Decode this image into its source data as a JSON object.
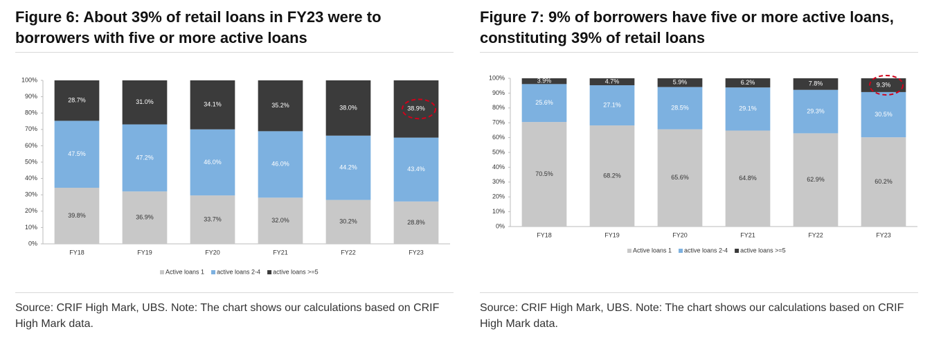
{
  "chart_data": [
    {
      "type": "bar",
      "stacked": "percent",
      "title": "Figure 6: About 39% of retail loans in FY23 were to borrowers with five or more active loans",
      "source": "Source: CRIF High Mark, UBS. Note: The chart shows our calculations based on CRIF High Mark data.",
      "categories": [
        "FY18",
        "FY19",
        "FY20",
        "FY21",
        "FY22",
        "FY23"
      ],
      "series": [
        {
          "name": "Active loans 1",
          "color": "#c8c8c8",
          "values": [
            39.8,
            36.9,
            33.7,
            32.0,
            30.2,
            28.8
          ],
          "value_labels": [
            "39.8%",
            "36.9%",
            "33.7%",
            "32.0%",
            "30.2%",
            "28.8%"
          ]
        },
        {
          "name": "active loans 2-4",
          "color": "#7db1e0",
          "values": [
            47.5,
            47.2,
            46.0,
            46.0,
            44.2,
            43.4
          ],
          "value_labels": [
            "47.5%",
            "47.2%",
            "46.0%",
            "46.0%",
            "44.2%",
            "43.4%"
          ]
        },
        {
          "name": "active loans >=5",
          "color": "#3b3b3b",
          "values": [
            28.7,
            31.0,
            34.1,
            35.2,
            38.0,
            38.9
          ],
          "value_labels": [
            "28.7%",
            "31.0%",
            "34.1%",
            "35.2%",
            "38.0%",
            "38.9%"
          ]
        }
      ],
      "ylim": [
        0,
        100
      ],
      "yticks": [
        {
          "value": 0,
          "label": "0%"
        },
        {
          "value": 10,
          "label": "10%"
        },
        {
          "value": 20,
          "label": "20%"
        },
        {
          "value": 30,
          "label": "30%"
        },
        {
          "value": 40,
          "label": "40%"
        },
        {
          "value": 50,
          "label": "50%"
        },
        {
          "value": 60,
          "label": "60%"
        },
        {
          "value": 70,
          "label": "70%"
        },
        {
          "value": 80,
          "label": "80%"
        },
        {
          "value": 90,
          "label": "90%"
        },
        {
          "value": 100,
          "label": "100%"
        }
      ],
      "grid": false,
      "legend": "bottom"
    },
    {
      "type": "bar",
      "stacked": "percent",
      "title": "Figure 7: 9% of borrowers have five or more active loans, constituting 39% of retail loans",
      "source": "Source: CRIF High Mark, UBS. Note: The chart shows our calculations based on CRIF High Mark data.",
      "categories": [
        "FY18",
        "FY19",
        "FY20",
        "FY21",
        "FY22",
        "FY23"
      ],
      "series": [
        {
          "name": "Active loans 1",
          "color": "#c8c8c8",
          "values": [
            70.5,
            68.2,
            65.6,
            64.8,
            62.9,
            60.2
          ],
          "value_labels": [
            "70.5%",
            "68.2%",
            "65.6%",
            "64.8%",
            "62.9%",
            "60.2%"
          ]
        },
        {
          "name": "active loans 2-4",
          "color": "#7db1e0",
          "values": [
            25.6,
            27.1,
            28.5,
            29.1,
            29.3,
            30.5
          ],
          "value_labels": [
            "25.6%",
            "27.1%",
            "28.5%",
            "29.1%",
            "29.3%",
            "30.5%"
          ]
        },
        {
          "name": "active loans >=5",
          "color": "#3b3b3b",
          "values": [
            3.9,
            4.7,
            5.9,
            6.2,
            7.8,
            9.3
          ],
          "value_labels": [
            "3.9%",
            "4.7%",
            "5.9%",
            "6.2%",
            "7.8%",
            "9.3%"
          ]
        }
      ],
      "ylim": [
        0,
        100
      ],
      "yticks": [
        {
          "value": 0,
          "label": "0%"
        },
        {
          "value": 10,
          "label": "10%"
        },
        {
          "value": 20,
          "label": "20%"
        },
        {
          "value": 30,
          "label": "30%"
        },
        {
          "value": 40,
          "label": "40%"
        },
        {
          "value": 50,
          "label": "50%"
        },
        {
          "value": 60,
          "label": "60%"
        },
        {
          "value": 70,
          "label": "70%"
        },
        {
          "value": 80,
          "label": "80%"
        },
        {
          "value": 90,
          "label": "90%"
        },
        {
          "value": 100,
          "label": "100%"
        }
      ],
      "grid": false,
      "legend": "bottom"
    }
  ]
}
